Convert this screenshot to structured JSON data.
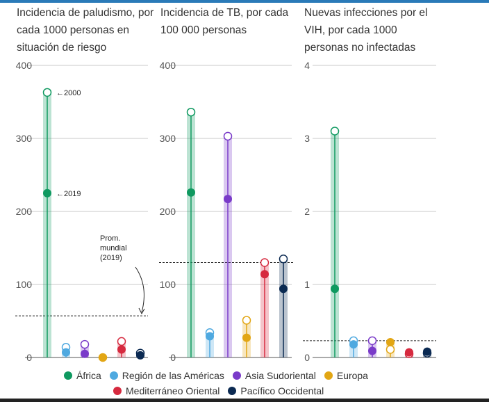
{
  "chart_data": [
    {
      "type": "dot",
      "title": "Incidencia de paludismo, por cada 1000 personas en situación de riesgo",
      "ylim": [
        0,
        400
      ],
      "yticks": [
        "0",
        "100",
        "200",
        "300",
        "400"
      ],
      "reference_line": {
        "value": 57,
        "label": "Prom. mundial (2019)"
      },
      "annotations": [
        "←2000",
        "←2019"
      ],
      "series": [
        {
          "name": "África",
          "v2000": 363,
          "v2019": 225
        },
        {
          "name": "Región de las Américas",
          "v2000": 14,
          "v2019": 7
        },
        {
          "name": "Asia Sudoriental",
          "v2000": 18,
          "v2019": 5
        },
        {
          "name": "Europa",
          "v2000": 0,
          "v2019": 0
        },
        {
          "name": "Mediterráneo Oriental",
          "v2000": 22,
          "v2019": 11
        },
        {
          "name": "Pacífico Occidental",
          "v2000": 6,
          "v2019": 3
        }
      ]
    },
    {
      "type": "dot",
      "title": "Incidencia de TB, por cada 100 000 personas",
      "ylim": [
        0,
        400
      ],
      "yticks": [
        "0",
        "100",
        "200",
        "300",
        "400"
      ],
      "reference_line": {
        "value": 130
      },
      "series": [
        {
          "name": "África",
          "v2000": 336,
          "v2019": 226
        },
        {
          "name": "Región de las Américas",
          "v2000": 34,
          "v2019": 29
        },
        {
          "name": "Asia Sudoriental",
          "v2000": 303,
          "v2019": 217
        },
        {
          "name": "Europa",
          "v2000": 51,
          "v2019": 27
        },
        {
          "name": "Mediterráneo Oriental",
          "v2000": 130,
          "v2019": 114
        },
        {
          "name": "Pacífico Occidental",
          "v2000": 135,
          "v2019": 94
        }
      ]
    },
    {
      "type": "dot",
      "title": "Nuevas infecciones por el VIH, por cada 1000 personas no infectadas",
      "ylim": [
        0,
        4
      ],
      "yticks": [
        "0",
        "1",
        "2",
        "3",
        "4"
      ],
      "reference_line": {
        "value": 0.23
      },
      "series": [
        {
          "name": "África",
          "v2000": 3.1,
          "v2019": 0.94
        },
        {
          "name": "Región de las Américas",
          "v2000": 0.23,
          "v2019": 0.18
        },
        {
          "name": "Asia Sudoriental",
          "v2000": 0.23,
          "v2019": 0.09
        },
        {
          "name": "Europa",
          "v2000": 0.11,
          "v2019": 0.21
        },
        {
          "name": "Mediterráneo Oriental",
          "v2000": 0.05,
          "v2019": 0.07
        },
        {
          "name": "Pacífico Occidental",
          "v2000": 0.06,
          "v2019": 0.08
        }
      ]
    }
  ],
  "legend": [
    {
      "label": "África",
      "color": "#0f9960"
    },
    {
      "label": "Región de las Américas",
      "color": "#4fa9e0"
    },
    {
      "label": "Asia Sudoriental",
      "color": "#7a3bc9"
    },
    {
      "label": "Europa",
      "color": "#e2a614"
    },
    {
      "label": "Mediterráneo Oriental",
      "color": "#d62a3f"
    },
    {
      "label": "Pacífico Occidental",
      "color": "#0b2a52"
    }
  ]
}
